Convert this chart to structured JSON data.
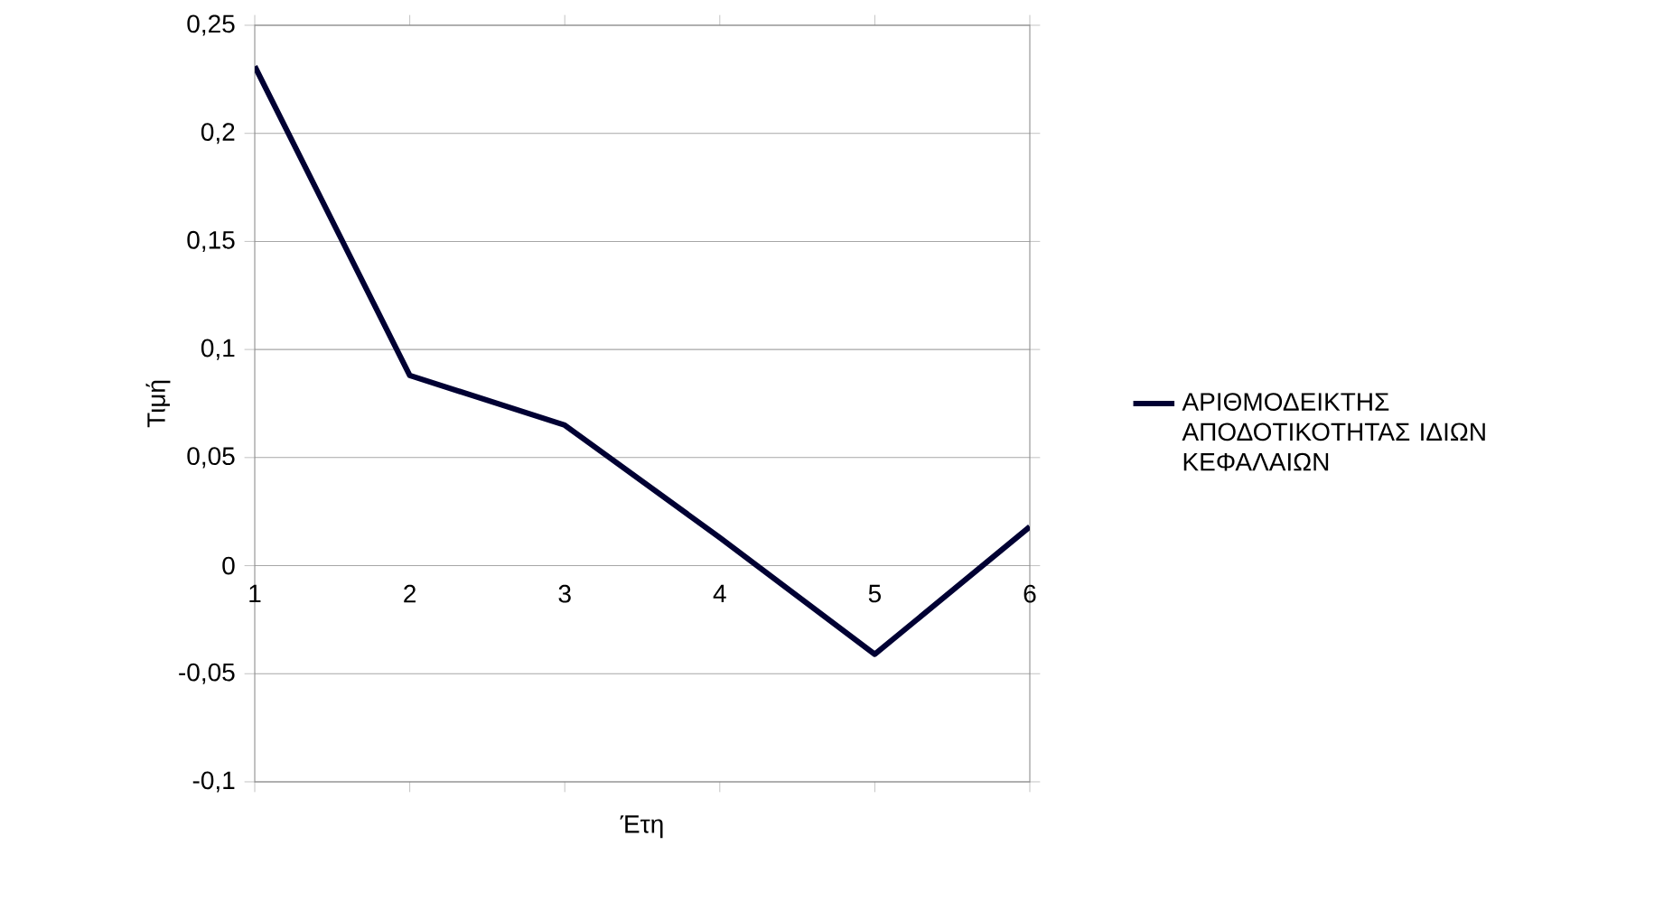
{
  "chart_data": {
    "type": "line",
    "xlabel": "Έτη",
    "ylabel": "Τιμή",
    "x": [
      1,
      2,
      3,
      4,
      5,
      6
    ],
    "series": [
      {
        "name": "ΑΡΙΘΜΟΔΕΙΚΤΗΣ ΑΠΟΔΟΤΙΚΟΤΗΤΑΣ ΙΔΙΩΝ ΚΕΦΑΛΑΙΩΝ",
        "color": "#000033",
        "values": [
          0.231,
          0.088,
          0.065,
          0.013,
          -0.041,
          0.018
        ]
      }
    ],
    "xlim": [
      1,
      6
    ],
    "xticks": [
      1,
      2,
      3,
      4,
      5,
      6
    ],
    "ylim": [
      -0.1,
      0.25
    ],
    "yticks": [
      {
        "value": -0.1,
        "label": "-0,1"
      },
      {
        "value": -0.05,
        "label": "-0,05"
      },
      {
        "value": 0,
        "label": "0"
      },
      {
        "value": 0.05,
        "label": "0,05"
      },
      {
        "value": 0.1,
        "label": "0,1"
      },
      {
        "value": 0.15,
        "label": "0,15"
      },
      {
        "value": 0.2,
        "label": "0,2"
      },
      {
        "value": 0.25,
        "label": "0,25"
      }
    ],
    "grid": "y",
    "legend": "right",
    "marker": "none",
    "line_style": "solid"
  }
}
